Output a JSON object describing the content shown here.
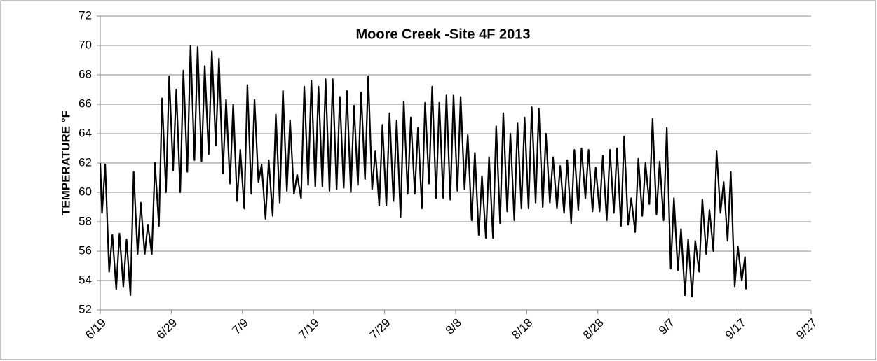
{
  "chart_data": {
    "type": "line",
    "title": "Moore Creek -Site 4F 2013",
    "ylabel": "TEMPERATURE °F",
    "color": "#000000",
    "grid": true,
    "xlim": [
      0,
      100
    ],
    "xticks": [
      {
        "value": 0,
        "label": "6/19"
      },
      {
        "value": 10,
        "label": "6/29"
      },
      {
        "value": 20,
        "label": "7/9"
      },
      {
        "value": 30,
        "label": "7/19"
      },
      {
        "value": 40,
        "label": "7/29"
      },
      {
        "value": 50,
        "label": "8/8"
      },
      {
        "value": 60,
        "label": "8/18"
      },
      {
        "value": 70,
        "label": "8/28"
      },
      {
        "value": 80,
        "label": "9/7"
      },
      {
        "value": 90,
        "label": "9/17"
      },
      {
        "value": 100,
        "label": "9/27"
      }
    ],
    "ylim": [
      52,
      72
    ],
    "yticks": [
      52,
      54,
      56,
      58,
      60,
      62,
      64,
      66,
      68,
      70,
      72
    ],
    "x": [
      0,
      0.25,
      0.7,
      1.25,
      1.7,
      2.25,
      2.7,
      3.25,
      3.7,
      4.25,
      4.7,
      5.25,
      5.7,
      6.25,
      6.7,
      7.25,
      7.7,
      8.25,
      8.7,
      9.25,
      9.7,
      10.25,
      10.7,
      11.25,
      11.7,
      12.25,
      12.7,
      13.25,
      13.7,
      14.25,
      14.7,
      15.25,
      15.7,
      16.25,
      16.7,
      17.25,
      17.7,
      18.25,
      18.7,
      19.25,
      19.7,
      20.25,
      20.7,
      21.25,
      21.7,
      22.25,
      22.7,
      23.25,
      23.7,
      24.25,
      24.7,
      25.25,
      25.7,
      26.25,
      26.7,
      27.25,
      27.7,
      28.25,
      28.7,
      29.25,
      29.7,
      30.25,
      30.7,
      31.25,
      31.7,
      32.25,
      32.7,
      33.25,
      33.7,
      34.25,
      34.7,
      35.25,
      35.7,
      36.25,
      36.7,
      37.25,
      37.7,
      38.25,
      38.7,
      39.25,
      39.7,
      40.25,
      40.7,
      41.25,
      41.7,
      42.25,
      42.7,
      43.25,
      43.7,
      44.25,
      44.7,
      45.25,
      45.7,
      46.25,
      46.7,
      47.25,
      47.7,
      48.25,
      48.7,
      49.25,
      49.7,
      50.25,
      50.7,
      51.25,
      51.7,
      52.25,
      52.7,
      53.25,
      53.7,
      54.25,
      54.7,
      55.25,
      55.7,
      56.25,
      56.7,
      57.25,
      57.7,
      58.25,
      58.7,
      59.25,
      59.7,
      60.25,
      60.7,
      61.25,
      61.7,
      62.25,
      62.7,
      63.25,
      63.7,
      64.25,
      64.7,
      65.25,
      65.7,
      66.25,
      66.7,
      67.25,
      67.7,
      68.25,
      68.7,
      69.25,
      69.7,
      70.25,
      70.7,
      71.25,
      71.7,
      72.25,
      72.7,
      73.25,
      73.7,
      74.25,
      74.7,
      75.25,
      75.7,
      76.25,
      76.7,
      77.25,
      77.7,
      78.25,
      78.7,
      79.25,
      79.7,
      80.25,
      80.7,
      81.25,
      81.7,
      82.25,
      82.7,
      83.25,
      83.7,
      84.25,
      84.7,
      85.25,
      85.7,
      86.25,
      86.7,
      87.25,
      87.7,
      88.25,
      88.7,
      89.25,
      89.7,
      90.25,
      90.7,
      90.85
    ],
    "values": [
      62.0,
      58.6,
      61.9,
      54.6,
      57.1,
      53.4,
      57.2,
      53.6,
      56.8,
      53.0,
      61.4,
      55.8,
      59.3,
      55.8,
      57.8,
      55.8,
      62.0,
      57.7,
      66.4,
      60.0,
      67.9,
      61.5,
      67.0,
      60.0,
      68.3,
      61.4,
      70.0,
      62.2,
      69.9,
      62.1,
      68.6,
      62.6,
      69.6,
      63.2,
      69.1,
      61.3,
      66.3,
      60.6,
      66.0,
      59.4,
      62.9,
      58.9,
      67.3,
      59.9,
      66.3,
      60.7,
      61.9,
      58.2,
      62.2,
      58.4,
      65.3,
      59.3,
      66.9,
      60.1,
      64.9,
      59.9,
      61.2,
      59.6,
      67.2,
      60.5,
      67.6,
      60.4,
      67.2,
      60.4,
      67.7,
      60.1,
      67.7,
      60.2,
      66.5,
      60.3,
      66.9,
      60.0,
      65.9,
      60.5,
      66.8,
      60.9,
      67.9,
      60.2,
      62.8,
      59.1,
      64.6,
      59.1,
      65.4,
      59.4,
      64.9,
      58.3,
      66.2,
      59.9,
      65.1,
      59.9,
      64.4,
      58.9,
      66.1,
      60.6,
      67.2,
      59.6,
      66.1,
      59.6,
      66.6,
      59.5,
      66.6,
      60.1,
      66.5,
      60.2,
      63.9,
      58.1,
      62.7,
      57.1,
      61.1,
      56.9,
      62.4,
      56.9,
      64.5,
      57.9,
      65.4,
      58.7,
      64.0,
      58.1,
      64.7,
      58.9,
      65.1,
      58.9,
      65.8,
      59.3,
      65.7,
      59.0,
      64.0,
      59.3,
      62.4,
      58.9,
      61.8,
      58.6,
      62.2,
      57.9,
      62.9,
      58.8,
      63.0,
      59.6,
      62.9,
      58.7,
      61.7,
      58.7,
      62.5,
      58.1,
      62.9,
      58.6,
      63.0,
      57.7,
      63.8,
      57.8,
      59.6,
      57.3,
      62.3,
      58.4,
      62.0,
      59.2,
      65.0,
      58.5,
      62.1,
      58.1,
      64.4,
      54.8,
      59.6,
      54.7,
      57.5,
      53.0,
      56.8,
      52.9,
      56.7,
      54.6,
      59.5,
      55.8,
      58.8,
      56.0,
      62.8,
      58.6,
      60.7,
      56.7,
      61.4,
      53.6,
      56.3,
      54.0,
      55.6,
      53.4
    ]
  }
}
